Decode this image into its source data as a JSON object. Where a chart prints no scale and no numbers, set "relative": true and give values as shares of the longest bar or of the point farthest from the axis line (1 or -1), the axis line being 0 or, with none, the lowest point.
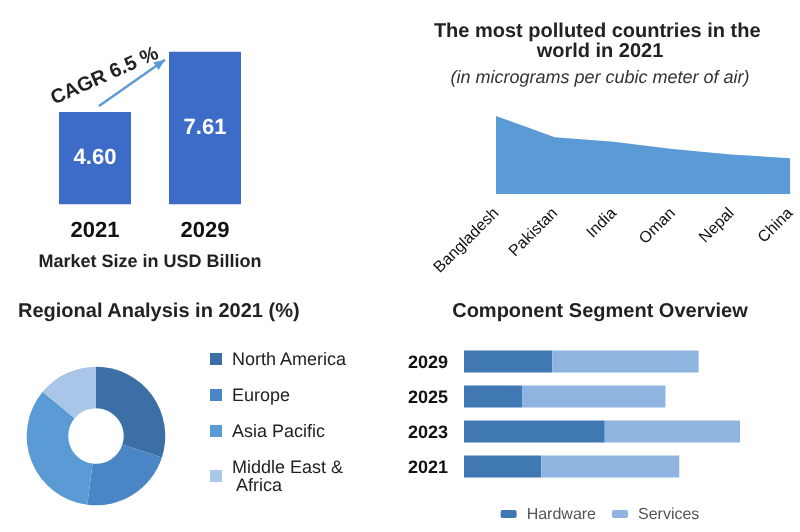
{
  "chart_data": [
    {
      "type": "bar",
      "categories": [
        "2021",
        "2029"
      ],
      "values": [
        4.6,
        7.61
      ],
      "color": "#3c6cc8",
      "value_labels": [
        "4.60",
        "7.61"
      ],
      "xlabel": "Market Size in USD Billion",
      "annotations": [
        "CAGR 6.5 %"
      ]
    },
    {
      "type": "area",
      "title": "The most polluted countries in the world in 2021",
      "subtitle": "(in micrograms per cubic meter of air)",
      "categories": [
        "Bangladesh",
        "Pakistan",
        "India",
        "Oman",
        "Nepal",
        "China"
      ],
      "values": [
        1,
        0.73,
        0.67,
        0.58,
        0.51,
        0.46
      ],
      "color": "#5b9bd5",
      "relative": true
    },
    {
      "type": "donut",
      "title": "Regional Analysis in 2021 (%)",
      "categories": [
        "North America",
        "Europe",
        "Asia Pacific",
        "Middle East & Africa"
      ],
      "values": [
        30,
        22,
        34,
        14
      ],
      "colors": [
        "#3b6fa5",
        "#4a86c5",
        "#5b9bd5",
        "#a9c6e8"
      ],
      "legend": "right"
    },
    {
      "type": "bar",
      "title": "Component Segment Overview",
      "orientation": "horizontal",
      "stacked": true,
      "relative": true,
      "categories": [
        "2029",
        "2025",
        "2023",
        "2021"
      ],
      "series": [
        {
          "name": "Hardware",
          "color": "#3f78b3",
          "values": [
            0.32,
            0.21,
            0.51,
            0.28
          ]
        },
        {
          "name": "Services",
          "color": "#8fb4e0",
          "values": [
            0.53,
            0.52,
            0.49,
            0.5
          ]
        }
      ],
      "legend": "bottom"
    }
  ]
}
